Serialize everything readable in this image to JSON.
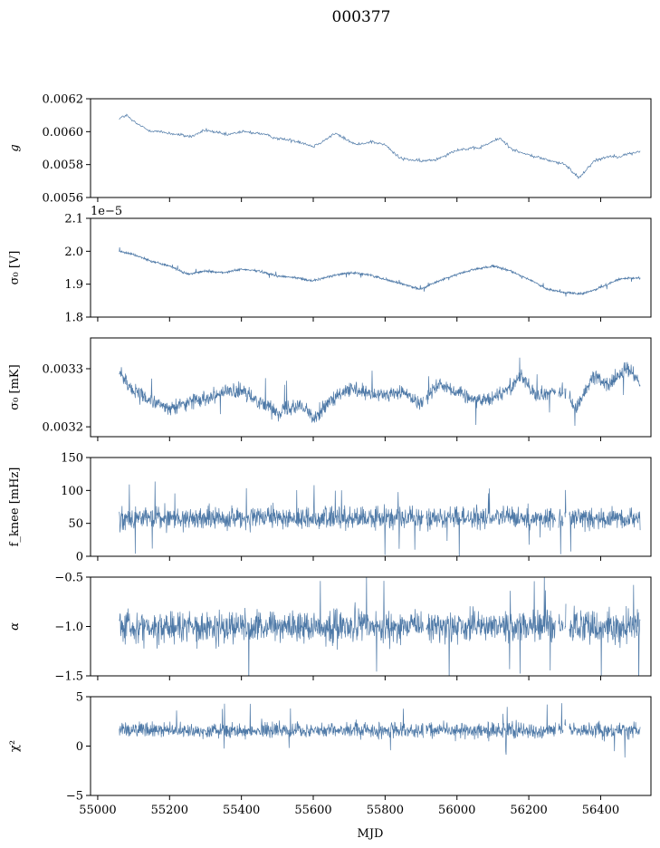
{
  "figure": {
    "title": "000377",
    "xlabel": "MJD"
  },
  "series_color": "#4e79a7",
  "chart_data": [
    {
      "type": "line",
      "ylabel": "g",
      "xlim": [
        54980,
        56540
      ],
      "ylim": [
        0.0056,
        0.0062
      ],
      "xticks": [
        55000,
        55200,
        55400,
        55600,
        55800,
        56000,
        56200,
        56400
      ],
      "yticks": [
        {
          "v": 0.0056,
          "label": "0.0056"
        },
        {
          "v": 0.0058,
          "label": "0.0058"
        },
        {
          "v": 0.006,
          "label": "0.0060"
        },
        {
          "v": 0.0062,
          "label": "0.0062"
        }
      ],
      "x": [
        55060,
        55080,
        55100,
        55140,
        55200,
        55260,
        55300,
        55360,
        55400,
        55450,
        55500,
        55560,
        55600,
        55640,
        55660,
        55720,
        55760,
        55800,
        55840,
        55900,
        55940,
        55980,
        56000,
        56060,
        56120,
        56150,
        56180,
        56250,
        56300,
        56340,
        56380,
        56420,
        56450,
        56510
      ],
      "y": [
        0.00608,
        0.0061,
        0.00606,
        0.00601,
        0.00599,
        0.00597,
        0.00601,
        0.00598,
        0.006,
        0.00599,
        0.00596,
        0.00594,
        0.00591,
        0.00596,
        0.00599,
        0.00592,
        0.00594,
        0.00592,
        0.00584,
        0.00582,
        0.00583,
        0.00587,
        0.00589,
        0.0059,
        0.00596,
        0.0059,
        0.00587,
        0.00583,
        0.0058,
        0.00572,
        0.00582,
        0.00585,
        0.00585,
        0.00588
      ],
      "noise": 1.2e-05,
      "offset_label": ""
    },
    {
      "type": "line",
      "ylabel": "σ₀ [V]",
      "xlim": [
        54980,
        56540
      ],
      "ylim": [
        1.8e-05,
        2.1e-05
      ],
      "xticks": [
        55000,
        55200,
        55400,
        55600,
        55800,
        56000,
        56200,
        56400
      ],
      "yticks": [
        {
          "v": 1.8e-05,
          "label": "1.8"
        },
        {
          "v": 1.9e-05,
          "label": "1.9"
        },
        {
          "v": 2e-05,
          "label": "2.0"
        },
        {
          "v": 2.1e-05,
          "label": "2.1"
        }
      ],
      "x": [
        55060,
        55100,
        55150,
        55200,
        55250,
        55300,
        55350,
        55400,
        55450,
        55500,
        55550,
        55600,
        55650,
        55700,
        55750,
        55800,
        55850,
        55900,
        55950,
        56000,
        56050,
        56100,
        56150,
        56200,
        56250,
        56300,
        56350,
        56400,
        56450,
        56510
      ],
      "y": [
        2e-05,
        1.99e-05,
        1.97e-05,
        1.955e-05,
        1.93e-05,
        1.94e-05,
        1.935e-05,
        1.945e-05,
        1.94e-05,
        1.925e-05,
        1.92e-05,
        1.91e-05,
        1.925e-05,
        1.935e-05,
        1.93e-05,
        1.915e-05,
        1.9e-05,
        1.885e-05,
        1.91e-05,
        1.93e-05,
        1.945e-05,
        1.955e-05,
        1.94e-05,
        1.915e-05,
        1.885e-05,
        1.875e-05,
        1.87e-05,
        1.89e-05,
        1.915e-05,
        1.92e-05
      ],
      "noise": 3.5e-08,
      "offset_label": "1e−5"
    },
    {
      "type": "line",
      "ylabel": "σ₀ [mK]",
      "xlim": [
        54980,
        56540
      ],
      "ylim": [
        0.003183,
        0.003353
      ],
      "xticks": [
        55000,
        55200,
        55400,
        55600,
        55800,
        56000,
        56200,
        56400
      ],
      "yticks": [
        {
          "v": 0.0032,
          "label": "0.0032"
        },
        {
          "v": 0.0033,
          "label": "0.0033"
        }
      ],
      "x": [
        55060,
        55100,
        55150,
        55200,
        55260,
        55300,
        55350,
        55400,
        55450,
        55500,
        55560,
        55600,
        55640,
        55700,
        55760,
        55800,
        55850,
        55900,
        55950,
        56000,
        56060,
        56100,
        56150,
        56180,
        56220,
        56260,
        56300,
        56330,
        56380,
        56420,
        56470,
        56510
      ],
      "y": [
        0.003295,
        0.00326,
        0.003245,
        0.00323,
        0.003245,
        0.00325,
        0.00326,
        0.00326,
        0.003245,
        0.003225,
        0.00324,
        0.003215,
        0.00324,
        0.003265,
        0.003255,
        0.003255,
        0.00326,
        0.00324,
        0.003275,
        0.00326,
        0.003245,
        0.00325,
        0.00327,
        0.00329,
        0.00325,
        0.00326,
        0.00326,
        0.00323,
        0.00329,
        0.00327,
        0.0033,
        0.00328
      ],
      "noise": 1.25e-05,
      "offset_label": ""
    },
    {
      "type": "line",
      "ylabel": "f_knee [mHz]",
      "xlim": [
        54980,
        56540
      ],
      "ylim": [
        0,
        150
      ],
      "xticks": [
        55000,
        55200,
        55400,
        55600,
        55800,
        56000,
        56200,
        56400
      ],
      "yticks": [
        {
          "v": 0,
          "label": "0"
        },
        {
          "v": 50,
          "label": "50"
        },
        {
          "v": 100,
          "label": "100"
        },
        {
          "v": 150,
          "label": "150"
        }
      ],
      "x": [
        55060,
        56510
      ],
      "y": [
        58,
        58
      ],
      "noise": 16,
      "offset_label": ""
    },
    {
      "type": "line",
      "ylabel": "α",
      "xlim": [
        54980,
        56540
      ],
      "ylim": [
        -1.5,
        -0.5
      ],
      "xticks": [
        55000,
        55200,
        55400,
        55600,
        55800,
        56000,
        56200,
        56400
      ],
      "yticks": [
        {
          "v": -1.5,
          "label": "−1.5"
        },
        {
          "v": -1.0,
          "label": "−1.0"
        },
        {
          "v": -0.5,
          "label": "−0.5"
        }
      ],
      "x": [
        55060,
        56510
      ],
      "y": [
        -1.0,
        -1.0
      ],
      "noise": 0.16,
      "offset_label": ""
    },
    {
      "type": "line",
      "ylabel": "χ²",
      "xlim": [
        54980,
        56540
      ],
      "ylim": [
        -5,
        5
      ],
      "xticks": [
        55000,
        55200,
        55400,
        55600,
        55800,
        56000,
        56200,
        56400
      ],
      "yticks": [
        {
          "v": -5,
          "label": "−5"
        },
        {
          "v": 0,
          "label": "0"
        },
        {
          "v": 5,
          "label": "5"
        }
      ],
      "xticklabels": [
        "55000",
        "55200",
        "55400",
        "55600",
        "55800",
        "56000",
        "56200",
        "56400"
      ],
      "x": [
        55060,
        56510
      ],
      "y": [
        1.6,
        1.6
      ],
      "noise": 0.75,
      "offset_label": ""
    }
  ]
}
